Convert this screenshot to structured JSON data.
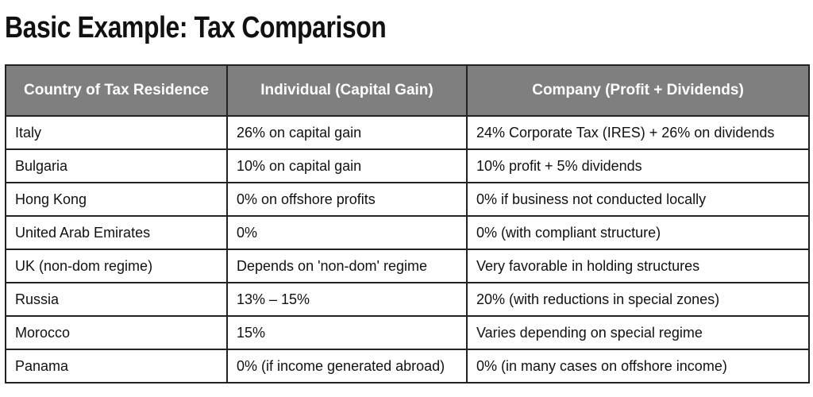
{
  "header": {
    "title": "Basic Example: Tax Comparison"
  },
  "table": {
    "columns": [
      "Country of Tax Residence",
      "Individual (Capital Gain)",
      "Company (Profit + Dividends)"
    ],
    "rows": [
      [
        "Italy",
        "26% on capital gain",
        "24% Corporate Tax (IRES) + 26% on dividends"
      ],
      [
        "Bulgaria",
        "10% on capital gain",
        "10% profit + 5% dividends"
      ],
      [
        "Hong Kong",
        "0% on offshore profits",
        "0% if business not conducted locally"
      ],
      [
        "United Arab Emirates",
        "0%",
        "0% (with compliant structure)"
      ],
      [
        "UK (non-dom regime)",
        "Depends on 'non-dom' regime",
        "Very favorable in holding structures"
      ],
      [
        "Russia",
        "13% – 15%",
        "20% (with reductions in special zones)"
      ],
      [
        "Morocco",
        "15%",
        "Varies depending on special regime"
      ],
      [
        "Panama",
        "0% (if income generated abroad)",
        "0% (in many cases on offshore income)"
      ]
    ]
  }
}
